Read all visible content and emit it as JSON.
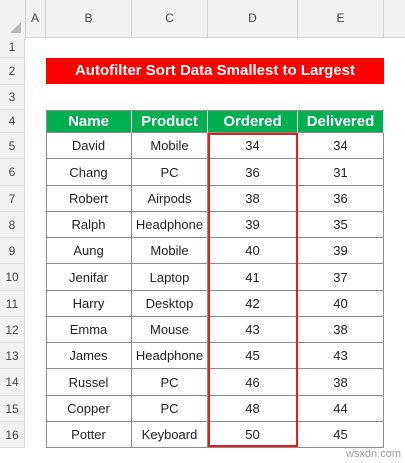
{
  "sheet": {
    "column_letters": [
      "A",
      "B",
      "C",
      "D",
      "E"
    ],
    "row_numbers": [
      "1",
      "2",
      "3",
      "4",
      "5",
      "6",
      "7",
      "8",
      "9",
      "10",
      "11",
      "12",
      "13",
      "14",
      "15",
      "16"
    ],
    "title": "Autofilter Sort Data Smallest to Largest",
    "headers": [
      "Name",
      "Product",
      "Ordered",
      "Delivered"
    ],
    "rows": [
      [
        "David",
        "Mobile",
        "34",
        "34"
      ],
      [
        "Chang",
        "PC",
        "36",
        "31"
      ],
      [
        "Robert",
        "Airpods",
        "38",
        "36"
      ],
      [
        "Ralph",
        "Headphone",
        "39",
        "35"
      ],
      [
        "Aung",
        "Mobile",
        "40",
        "39"
      ],
      [
        "Jenifar",
        "Laptop",
        "41",
        "37"
      ],
      [
        "Harry",
        "Desktop",
        "42",
        "40"
      ],
      [
        "Emma",
        "Mouse",
        "43",
        "38"
      ],
      [
        "James",
        "Headphone",
        "45",
        "43"
      ],
      [
        "Russel",
        "PC",
        "46",
        "38"
      ],
      [
        "Copper",
        "PC",
        "48",
        "44"
      ],
      [
        "Potter",
        "Keyboard",
        "50",
        "45"
      ]
    ]
  },
  "watermark": "wsxdn.com",
  "colors": {
    "title_bg": "#ff0000",
    "header_bg": "#00b050",
    "highlight_border": "#e0201b"
  }
}
